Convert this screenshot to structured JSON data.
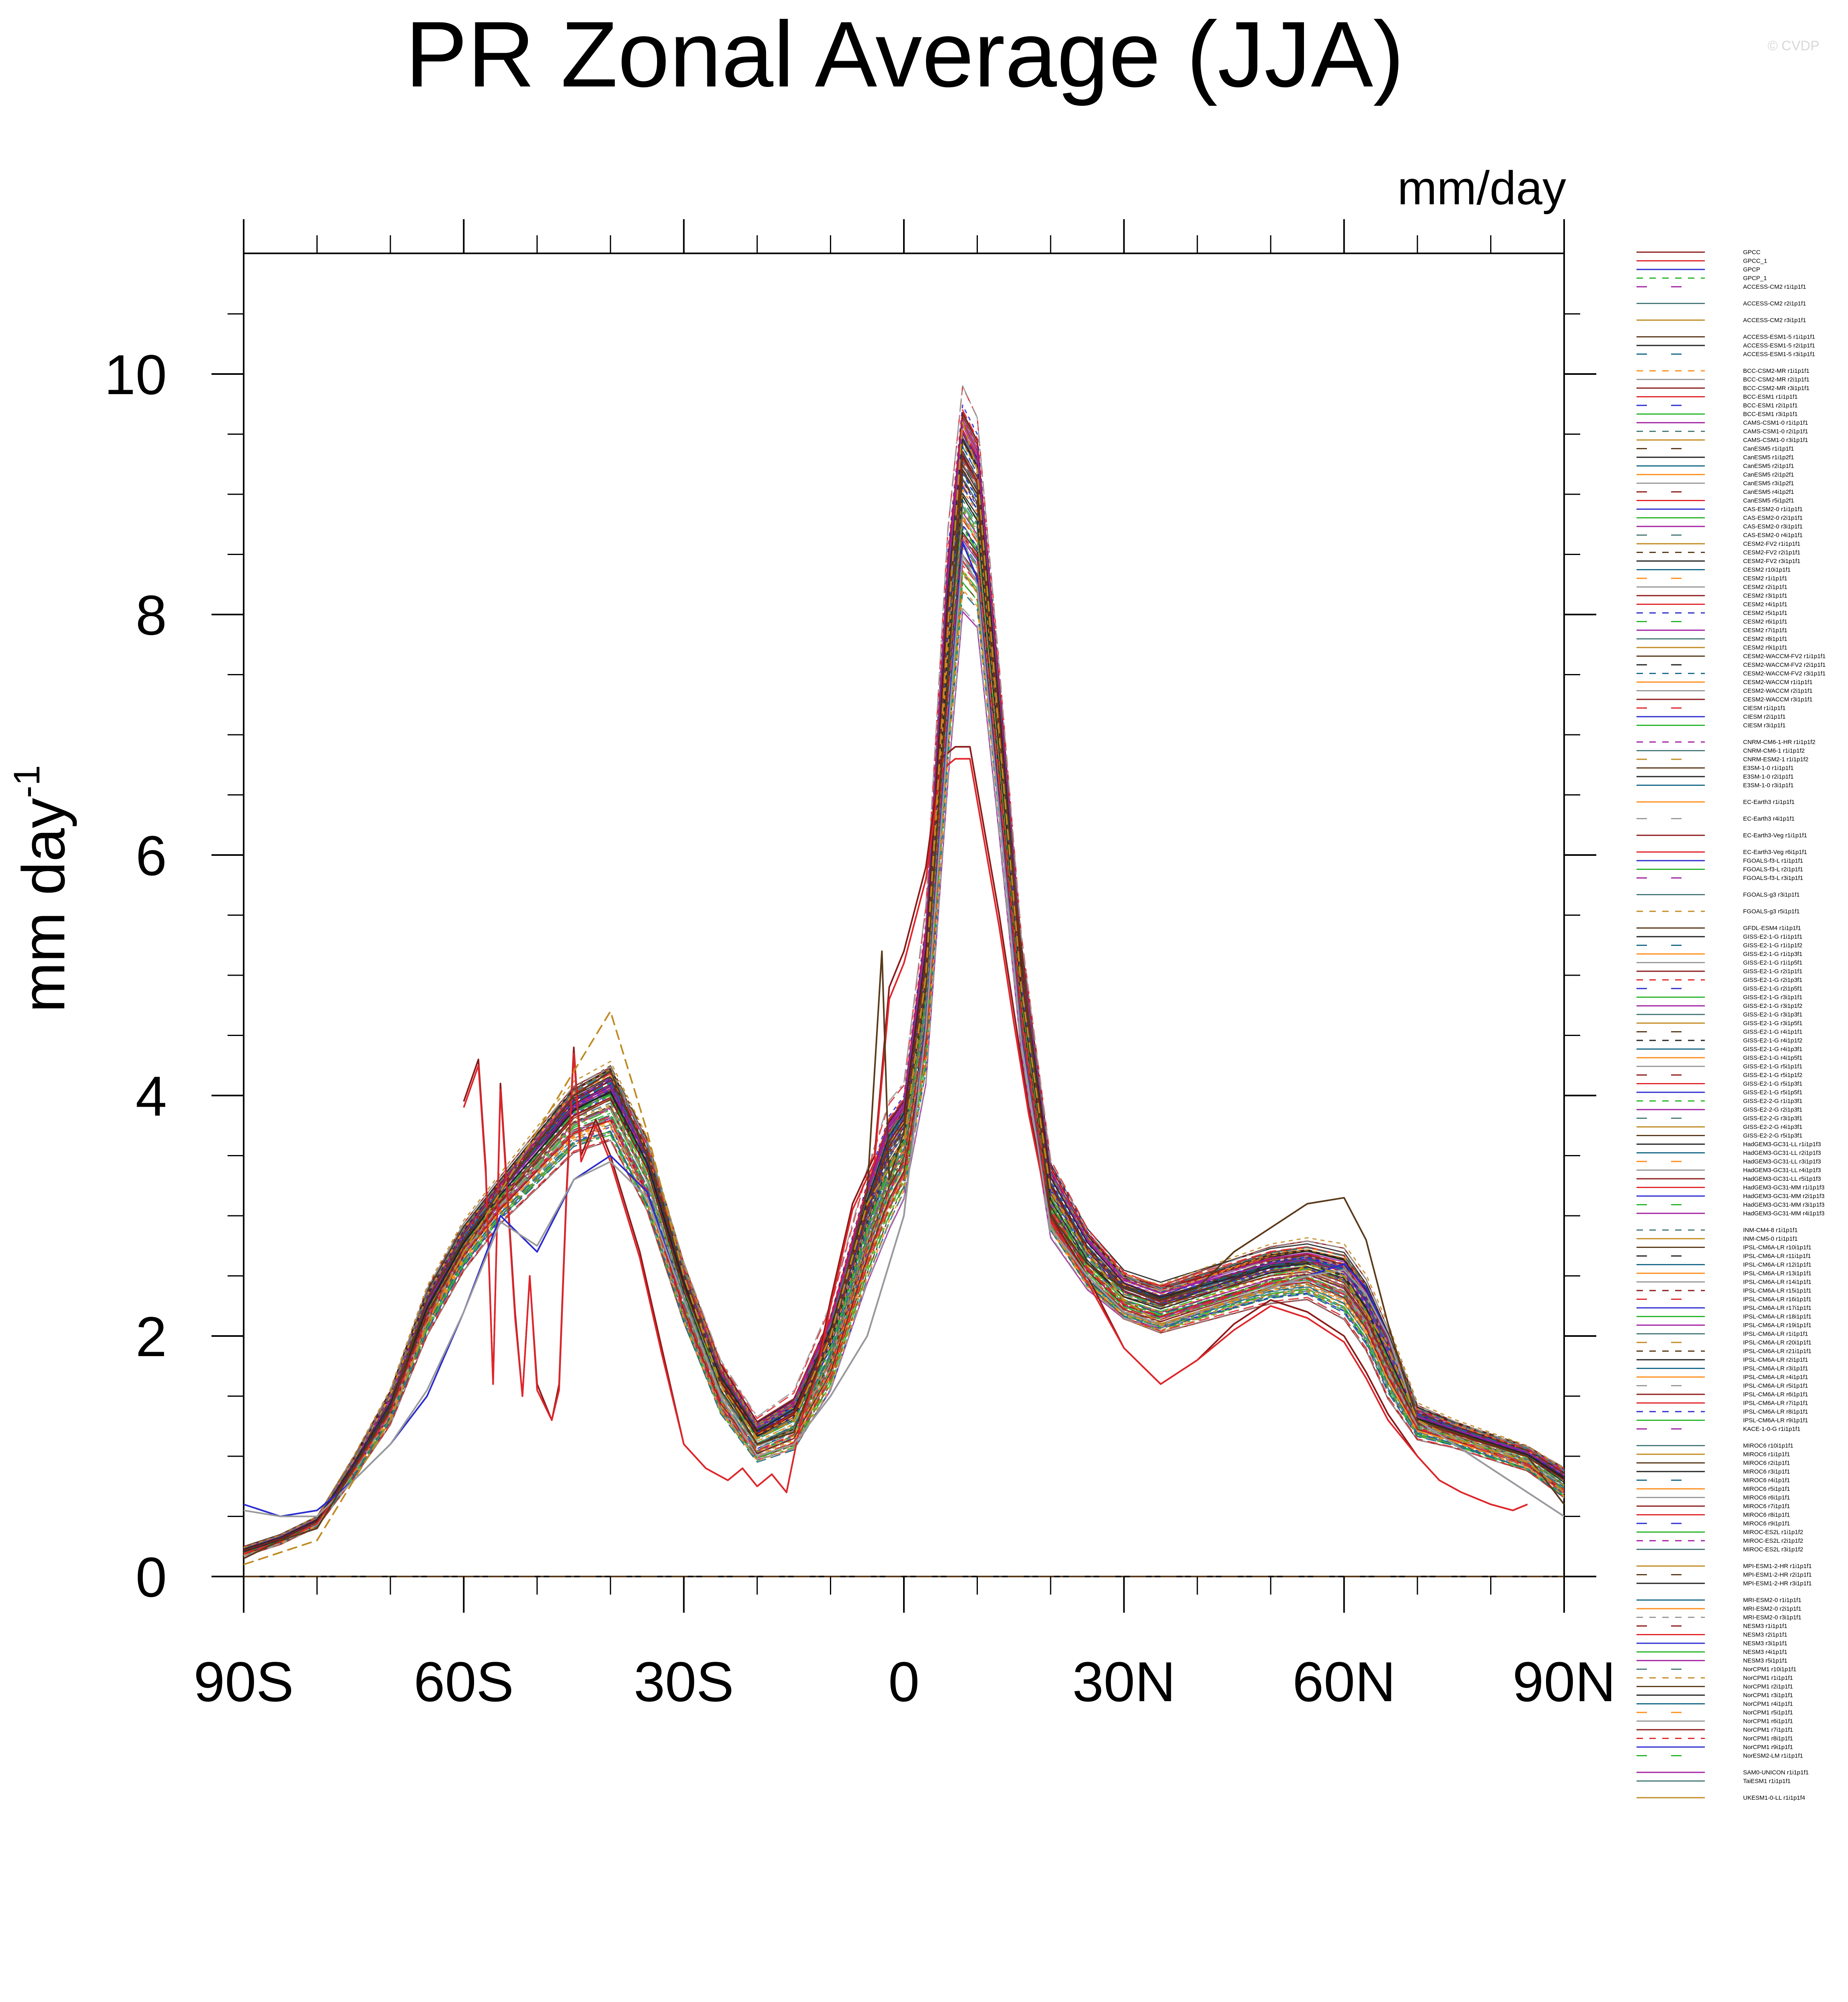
{
  "watermark": "© CVDP",
  "chart_data": {
    "type": "line",
    "title": "PR Zonal Average (JJA)",
    "units": "mm/day",
    "ylabel": "mm day",
    "ylabel_exponent": "-1",
    "xlim": [
      -90,
      90
    ],
    "ylim": [
      0,
      11
    ],
    "x_ticks": [
      {
        "value": -90,
        "label": "90S"
      },
      {
        "value": -60,
        "label": "60S"
      },
      {
        "value": -30,
        "label": "30S"
      },
      {
        "value": 0,
        "label": "0"
      },
      {
        "value": 30,
        "label": "30N"
      },
      {
        "value": 60,
        "label": "60N"
      },
      {
        "value": 90,
        "label": "90N"
      }
    ],
    "y_ticks": [
      {
        "value": 0,
        "label": "0"
      },
      {
        "value": 2,
        "label": "2"
      },
      {
        "value": 4,
        "label": "4"
      },
      {
        "value": 6,
        "label": "6"
      },
      {
        "value": 8,
        "label": "8"
      },
      {
        "value": 10,
        "label": "10"
      }
    ],
    "grid": false,
    "legend_position": "right",
    "palette": [
      "#8b1a1a",
      "#e0252a",
      "#2b2bd0",
      "#2ab52a",
      "#a020a0",
      "#4a7a7a",
      "#c08a20",
      "#5a3a1a",
      "#222222",
      "#1a6a8a",
      "#ff8c1a",
      "#9a9a9a"
    ],
    "ensemble_envelope": {
      "lat": [
        -90,
        -85,
        -80,
        -75,
        -70,
        -65,
        -60,
        -55,
        -50,
        -45,
        -40,
        -35,
        -30,
        -25,
        -20,
        -15,
        -10,
        -5,
        -2,
        0,
        3,
        6,
        8,
        10,
        13,
        16,
        20,
        25,
        30,
        35,
        40,
        45,
        50,
        55,
        60,
        63,
        66,
        70,
        75,
        80,
        85,
        90
      ],
      "mean": [
        0.2,
        0.3,
        0.45,
        0.9,
        1.4,
        2.2,
        2.75,
        3.15,
        3.5,
        3.85,
        4.0,
        3.4,
        2.4,
        1.6,
        1.15,
        1.3,
        1.9,
        2.9,
        3.4,
        3.6,
        4.8,
        7.6,
        8.9,
        8.7,
        6.8,
        4.8,
        3.1,
        2.6,
        2.3,
        2.2,
        2.3,
        2.4,
        2.5,
        2.55,
        2.45,
        2.2,
        1.8,
        1.3,
        1.2,
        1.1,
        1.0,
        0.8
      ],
      "spread": [
        0.05,
        0.05,
        0.05,
        0.1,
        0.15,
        0.2,
        0.2,
        0.2,
        0.25,
        0.3,
        0.35,
        0.35,
        0.3,
        0.25,
        0.2,
        0.25,
        0.35,
        0.45,
        0.5,
        0.45,
        0.7,
        1.0,
        0.9,
        0.85,
        0.7,
        0.5,
        0.35,
        0.3,
        0.25,
        0.25,
        0.25,
        0.25,
        0.25,
        0.25,
        0.3,
        0.3,
        0.3,
        0.15,
        0.12,
        0.12,
        0.12,
        0.15
      ]
    },
    "series": [
      {
        "name": "GPCC",
        "color": "#8b1a1a",
        "dash": "solid",
        "x": [
          -60,
          -58,
          -57,
          -56,
          -55,
          -53,
          -52,
          -51,
          -50,
          -48,
          -47,
          -46,
          -45,
          -44,
          -42,
          -40,
          -38,
          -36,
          -33,
          -30,
          -27,
          -24,
          -22,
          -20,
          -18,
          -16,
          -14,
          -12,
          -10,
          -7,
          -4,
          -2,
          0,
          3,
          5,
          7,
          9,
          11,
          13,
          15,
          17,
          20,
          25,
          30,
          35,
          40,
          45,
          50,
          55,
          60,
          63,
          66,
          70,
          73,
          76,
          80,
          83,
          85
        ],
        "y": [
          3.95,
          4.3,
          3.4,
          1.6,
          4.1,
          2.2,
          1.5,
          2.5,
          1.6,
          1.3,
          1.6,
          3.2,
          4.4,
          3.5,
          3.8,
          3.5,
          3.1,
          2.7,
          1.9,
          1.1,
          0.9,
          0.8,
          0.9,
          0.75,
          0.85,
          0.7,
          1.3,
          1.7,
          2.3,
          3.1,
          3.5,
          4.9,
          5.2,
          5.9,
          6.8,
          6.9,
          6.9,
          6.2,
          5.5,
          4.7,
          3.9,
          3.0,
          2.5,
          1.9,
          1.6,
          1.8,
          2.1,
          2.3,
          2.2,
          2.0,
          1.7,
          1.35,
          1.0,
          0.8,
          0.7,
          0.6,
          0.55,
          0.6
        ]
      },
      {
        "name": "GPCC_1",
        "color": "#e0252a",
        "dash": "solid",
        "x": [
          -60,
          -58,
          -57,
          -56,
          -55,
          -53,
          -52,
          -51,
          -50,
          -48,
          -47,
          -46,
          -45,
          -44,
          -42,
          -40,
          -38,
          -36,
          -33,
          -30,
          -27,
          -24,
          -22,
          -20,
          -18,
          -16,
          -14,
          -12,
          -10,
          -7,
          -4,
          -2,
          0,
          3,
          5,
          7,
          9,
          11,
          13,
          15,
          17,
          20,
          25,
          30,
          35,
          40,
          45,
          50,
          55,
          60,
          63,
          66,
          70,
          73,
          76,
          80,
          83,
          85
        ],
        "y": [
          3.9,
          4.25,
          3.35,
          1.6,
          4.05,
          2.15,
          1.5,
          2.5,
          1.55,
          1.3,
          1.55,
          3.15,
          4.35,
          3.45,
          3.75,
          3.45,
          3.05,
          2.65,
          1.85,
          1.1,
          0.9,
          0.8,
          0.9,
          0.75,
          0.85,
          0.7,
          1.3,
          1.65,
          2.25,
          3.05,
          3.45,
          4.8,
          5.1,
          5.8,
          6.7,
          6.8,
          6.8,
          6.1,
          5.4,
          4.6,
          3.85,
          2.95,
          2.45,
          1.9,
          1.6,
          1.8,
          2.05,
          2.25,
          2.15,
          1.95,
          1.65,
          1.3,
          1.0,
          0.8,
          0.7,
          0.6,
          0.55,
          0.6
        ]
      },
      {
        "name": "GPCP",
        "color": "#2b2bd0",
        "dash": "solid",
        "x": [
          -90,
          -85,
          -80,
          -75,
          -70,
          -65,
          -60,
          -55,
          -50,
          -45,
          -40,
          -35,
          -30,
          -25,
          -20,
          -15,
          -10,
          -5,
          -2,
          0,
          3,
          6,
          8,
          10,
          13,
          16,
          20,
          25,
          30,
          35,
          40,
          45,
          50,
          55,
          60,
          63,
          66,
          70,
          75,
          80,
          85,
          90
        ],
        "y": [
          0.6,
          0.5,
          0.55,
          0.8,
          1.1,
          1.5,
          2.2,
          3.0,
          2.7,
          3.3,
          3.5,
          3.2,
          2.3,
          1.5,
          1.0,
          1.1,
          1.5,
          2.0,
          2.6,
          3.0,
          4.6,
          7.1,
          8.6,
          8.3,
          6.4,
          4.5,
          2.9,
          2.5,
          2.2,
          2.1,
          2.2,
          2.3,
          2.4,
          2.5,
          2.6,
          2.4,
          2.0,
          1.3,
          1.1,
          0.9,
          0.7,
          0.5
        ]
      },
      {
        "name": "GPCP_1",
        "color": "#9a9a9a",
        "dash": "solid",
        "x": [
          -90,
          -85,
          -80,
          -75,
          -70,
          -65,
          -60,
          -55,
          -50,
          -45,
          -40,
          -35,
          -30,
          -25,
          -20,
          -15,
          -10,
          -5,
          -2,
          0,
          3,
          6,
          8,
          10,
          13,
          16,
          20,
          25,
          30,
          35,
          40,
          45,
          50,
          55,
          60,
          63,
          66,
          70,
          75,
          80,
          85,
          90
        ],
        "y": [
          0.55,
          0.5,
          0.5,
          0.8,
          1.1,
          1.55,
          2.2,
          2.95,
          2.75,
          3.3,
          3.45,
          3.15,
          2.3,
          1.5,
          1.0,
          1.1,
          1.5,
          2.0,
          2.6,
          3.0,
          4.55,
          7.0,
          8.5,
          8.25,
          6.35,
          4.45,
          2.9,
          2.5,
          2.2,
          2.1,
          2.2,
          2.3,
          2.4,
          2.5,
          2.55,
          2.35,
          2.0,
          1.3,
          1.1,
          0.9,
          0.7,
          0.5
        ]
      },
      {
        "name": "CESM2 r1i1p1f1",
        "color": "#5a3a1a",
        "dash": "solid",
        "x": [
          -90,
          -85,
          -80,
          -75,
          -70,
          -65,
          -60,
          -55,
          -50,
          -45,
          -40,
          -35,
          -30,
          -25,
          -20,
          -15,
          -10,
          -5,
          -3,
          -2,
          0,
          3,
          6,
          8,
          10,
          13,
          16,
          20,
          25,
          30,
          35,
          40,
          45,
          50,
          55,
          60,
          63,
          66,
          70,
          75,
          80,
          85,
          90
        ],
        "y": [
          0.15,
          0.3,
          0.4,
          0.9,
          1.4,
          2.3,
          2.8,
          3.2,
          3.6,
          4.0,
          4.2,
          3.5,
          2.5,
          1.6,
          1.1,
          1.2,
          2.0,
          3.2,
          5.2,
          3.3,
          3.7,
          4.9,
          7.5,
          9.2,
          9.0,
          7.0,
          5.2,
          3.0,
          2.6,
          2.4,
          2.3,
          2.4,
          2.7,
          2.9,
          3.1,
          3.15,
          2.8,
          2.1,
          1.3,
          1.2,
          1.1,
          1.0,
          0.6
        ]
      },
      {
        "name": "UKESM1-0-LL r1i1p1f4",
        "color": "#c08a20",
        "dash": "dash",
        "x": [
          -90,
          -85,
          -80,
          -75,
          -70,
          -65,
          -60,
          -55,
          -50,
          -45,
          -40,
          -35,
          -30,
          -25,
          -20,
          -15,
          -10,
          -5,
          -2,
          0,
          3,
          6,
          8,
          10,
          13,
          16,
          20,
          25,
          30,
          35,
          40,
          45,
          50,
          55,
          60,
          63,
          66,
          70,
          75,
          80,
          85,
          90
        ],
        "y": [
          0.1,
          0.2,
          0.3,
          0.8,
          1.3,
          2.1,
          2.7,
          3.2,
          3.7,
          4.2,
          4.7,
          3.7,
          2.5,
          1.6,
          1.15,
          1.3,
          2.0,
          3.1,
          3.4,
          3.6,
          5.0,
          7.9,
          9.6,
          9.2,
          7.0,
          4.9,
          3.2,
          2.7,
          2.3,
          2.1,
          2.2,
          2.3,
          2.4,
          2.6,
          2.5,
          2.2,
          1.9,
          1.3,
          1.15,
          1.05,
          0.95,
          0.7
        ]
      }
    ],
    "legend": {
      "groups": [
        {
          "entries": [
            "GPCC",
            "GPCC_1",
            "GPCP",
            "GPCP_1",
            "ACCESS-CM2 r1i1p1f1"
          ]
        },
        {
          "entries": [
            "ACCESS-CM2 r2i1p1f1"
          ]
        },
        {
          "entries": [
            "ACCESS-CM2 r3i1p1f1"
          ]
        },
        {
          "entries": [
            "ACCESS-ESM1-5 r1i1p1f1",
            "ACCESS-ESM1-5 r2i1p1f1",
            "ACCESS-ESM1-5 r3i1p1f1"
          ]
        },
        {
          "entries": [
            "BCC-CSM2-MR r1i1p1f1",
            "BCC-CSM2-MR r2i1p1f1",
            "BCC-CSM2-MR r3i1p1f1",
            "BCC-ESM1 r1i1p1f1",
            "BCC-ESM1 r2i1p1f1",
            "BCC-ESM1 r3i1p1f1",
            "CAMS-CSM1-0 r1i1p1f1",
            "CAMS-CSM1-0 r2i1p1f1",
            "CAMS-CSM1-0 r3i1p1f1",
            "CanESM5 r1i1p1f1",
            "CanESM5 r1i1p2f1",
            "CanESM5 r2i1p1f1",
            "CanESM5 r2i1p2f1",
            "CanESM5 r3i1p2f1",
            "CanESM5 r4i1p2f1",
            "CanESM5 r5i1p2f1",
            "CAS-ESM2-0 r1i1p1f1",
            "CAS-ESM2-0 r2i1p1f1",
            "CAS-ESM2-0 r3i1p1f1",
            "CAS-ESM2-0 r4i1p1f1",
            "CESM2-FV2 r1i1p1f1",
            "CESM2-FV2 r2i1p1f1",
            "CESM2-FV2 r3i1p1f1",
            "CESM2 r10i1p1f1",
            "CESM2 r1i1p1f1",
            "CESM2 r2i1p1f1",
            "CESM2 r3i1p1f1",
            "CESM2 r4i1p1f1",
            "CESM2 r5i1p1f1",
            "CESM2 r6i1p1f1",
            "CESM2 r7i1p1f1",
            "CESM2 r8i1p1f1",
            "CESM2 r9i1p1f1",
            "CESM2-WACCM-FV2 r1i1p1f1",
            "CESM2-WACCM-FV2 r2i1p1f1",
            "CESM2-WACCM-FV2 r3i1p1f1",
            "CESM2-WACCM r1i1p1f1",
            "CESM2-WACCM r2i1p1f1",
            "CESM2-WACCM r3i1p1f1",
            "CIESM r1i1p1f1",
            "CIESM r2i1p1f1",
            "CIESM r3i1p1f1"
          ]
        },
        {
          "entries": [
            "CNRM-CM6-1-HR r1i1p1f2",
            "CNRM-CM6-1 r1i1p1f2",
            "CNRM-ESM2-1 r1i1p1f2",
            "E3SM-1-0 r1i1p1f1",
            "E3SM-1-0 r2i1p1f1",
            "E3SM-1-0 r3i1p1f1"
          ]
        },
        {
          "entries": [
            "EC-Earth3 r1i1p1f1"
          ]
        },
        {
          "entries": [
            "EC-Earth3 r4i1p1f1"
          ]
        },
        {
          "entries": [
            "EC-Earth3-Veg r1i1p1f1"
          ]
        },
        {
          "entries": [
            "EC-Earth3-Veg r6i1p1f1",
            "FGOALS-f3-L r1i1p1f1",
            "FGOALS-f3-L r2i1p1f1",
            "FGOALS-f3-L r3i1p1f1"
          ]
        },
        {
          "entries": [
            "FGOALS-g3 r3i1p1f1"
          ]
        },
        {
          "entries": [
            "FGOALS-g3 r5i1p1f1"
          ]
        },
        {
          "entries": [
            "GFDL-ESM4 r1i1p1f1",
            "GISS-E2-1-G r1i1p1f1",
            "GISS-E2-1-G r1i1p1f2",
            "GISS-E2-1-G r1i1p3f1",
            "GISS-E2-1-G r1i1p5f1",
            "GISS-E2-1-G r2i1p1f1",
            "GISS-E2-1-G r2i1p3f1",
            "GISS-E2-1-G r2i1p5f1",
            "GISS-E2-1-G r3i1p1f1",
            "GISS-E2-1-G r3i1p1f2",
            "GISS-E2-1-G r3i1p3f1",
            "GISS-E2-1-G r3i1p5f1",
            "GISS-E2-1-G r4i1p1f1",
            "GISS-E2-1-G r4i1p1f2",
            "GISS-E2-1-G r4i1p3f1",
            "GISS-E2-1-G r4i1p5f1",
            "GISS-E2-1-G r5i1p1f1",
            "GISS-E2-1-G r5i1p1f2",
            "GISS-E2-1-G r5i1p3f1",
            "GISS-E2-1-G r5i1p5f1",
            "GISS-E2-2-G r1i1p3f1",
            "GISS-E2-2-G r2i1p3f1",
            "GISS-E2-2-G r3i1p3f1",
            "GISS-E2-2-G r4i1p3f1",
            "GISS-E2-2-G r5i1p3f1",
            "HadGEM3-GC31-LL r1i1p1f3",
            "HadGEM3-GC31-LL r2i1p1f3",
            "HadGEM3-GC31-LL r3i1p1f3",
            "HadGEM3-GC31-LL r4i1p1f3",
            "HadGEM3-GC31-LL r5i1p1f3",
            "HadGEM3-GC31-MM r1i1p1f3",
            "HadGEM3-GC31-MM r2i1p1f3",
            "HadGEM3-GC31-MM r3i1p1f3",
            "HadGEM3-GC31-MM r4i1p1f3"
          ]
        },
        {
          "entries": [
            "INM-CM4-8 r1i1p1f1",
            "INM-CM5-0 r1i1p1f1",
            "IPSL-CM6A-LR r10i1p1f1",
            "IPSL-CM6A-LR r11i1p1f1",
            "IPSL-CM6A-LR r12i1p1f1",
            "IPSL-CM6A-LR r13i1p1f1",
            "IPSL-CM6A-LR r14i1p1f1",
            "IPSL-CM6A-LR r15i1p1f1",
            "IPSL-CM6A-LR r16i1p1f1",
            "IPSL-CM6A-LR r17i1p1f1",
            "IPSL-CM6A-LR r18i1p1f1",
            "IPSL-CM6A-LR r19i1p1f1",
            "IPSL-CM6A-LR r1i1p1f1",
            "IPSL-CM6A-LR r20i1p1f1",
            "IPSL-CM6A-LR r21i1p1f1",
            "IPSL-CM6A-LR r2i1p1f1",
            "IPSL-CM6A-LR r3i1p1f1",
            "IPSL-CM6A-LR r4i1p1f1",
            "IPSL-CM6A-LR r5i1p1f1",
            "IPSL-CM6A-LR r6i1p1f1",
            "IPSL-CM6A-LR r7i1p1f1",
            "IPSL-CM6A-LR r8i1p1f1",
            "IPSL-CM6A-LR r9i1p1f1",
            "KACE-1-0-G r1i1p1f1"
          ]
        },
        {
          "entries": [
            "MIROC6 r10i1p1f1",
            "MIROC6 r1i1p1f1",
            "MIROC6 r2i1p1f1",
            "MIROC6 r3i1p1f1",
            "MIROC6 r4i1p1f1",
            "MIROC6 r5i1p1f1",
            "MIROC6 r6i1p1f1",
            "MIROC6 r7i1p1f1",
            "MIROC6 r8i1p1f1",
            "MIROC6 r9i1p1f1",
            "MIROC-ES2L r1i1p1f2",
            "MIROC-ES2L r2i1p1f2",
            "MIROC-ES2L r3i1p1f2"
          ]
        },
        {
          "entries": [
            "MPI-ESM1-2-HR r1i1p1f1",
            "MPI-ESM1-2-HR r2i1p1f1",
            "MPI-ESM1-2-HR r3i1p1f1"
          ]
        },
        {
          "entries": [
            "MRI-ESM2-0 r1i1p1f1",
            "MRI-ESM2-0 r2i1p1f1",
            "MRI-ESM2-0 r3i1p1f1",
            "NESM3 r1i1p1f1",
            "NESM3 r2i1p1f1",
            "NESM3 r3i1p1f1",
            "NESM3 r4i1p1f1",
            "NESM3 r5i1p1f1",
            "NorCPM1 r10i1p1f1",
            "NorCPM1 r1i1p1f1",
            "NorCPM1 r2i1p1f1",
            "NorCPM1 r3i1p1f1",
            "NorCPM1 r4i1p1f1",
            "NorCPM1 r5i1p1f1",
            "NorCPM1 r6i1p1f1",
            "NorCPM1 r7i1p1f1",
            "NorCPM1 r8i1p1f1",
            "NorCPM1 r9i1p1f1",
            "NorESM2-LM r1i1p1f1"
          ]
        },
        {
          "entries": [
            "SAM0-UNICON r1i1p1f1",
            "TaiESM1 r1i1p1f1"
          ]
        },
        {
          "entries": [
            "UKESM1-0-LL r1i1p1f4"
          ]
        }
      ]
    }
  }
}
